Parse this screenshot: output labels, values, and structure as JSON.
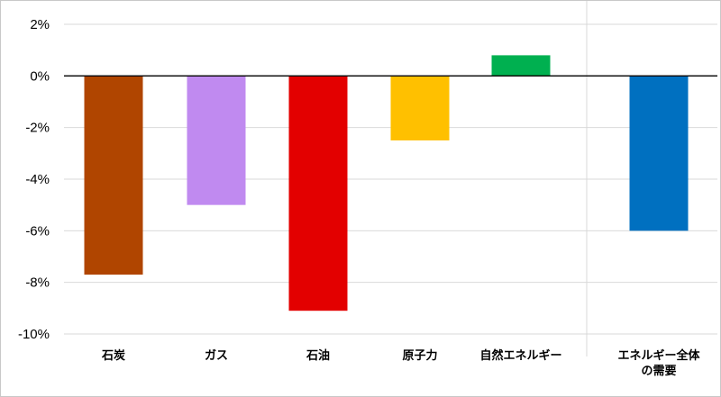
{
  "chart_data": {
    "type": "bar",
    "title": "",
    "xlabel": "",
    "ylabel": "",
    "ylim": [
      -10,
      2
    ],
    "yticks": [
      "2%",
      "0%",
      "-2%",
      "-4%",
      "-6%",
      "-8%",
      "-10%"
    ],
    "grid": true,
    "categories": [
      {
        "label": "石炭",
        "value": -7.7,
        "color": "#b04500"
      },
      {
        "label": "ガス",
        "value": -5.0,
        "color": "#c08af0"
      },
      {
        "label": "石油",
        "value": -9.1,
        "color": "#e30000"
      },
      {
        "label": "原子力",
        "value": -2.5,
        "color": "#ffc000"
      },
      {
        "label": "自然エネルギー",
        "value": 0.8,
        "color": "#00b050"
      },
      {
        "label": "エネルギー全体\nの需要",
        "value": -6.0,
        "color": "#0070c0"
      }
    ]
  }
}
